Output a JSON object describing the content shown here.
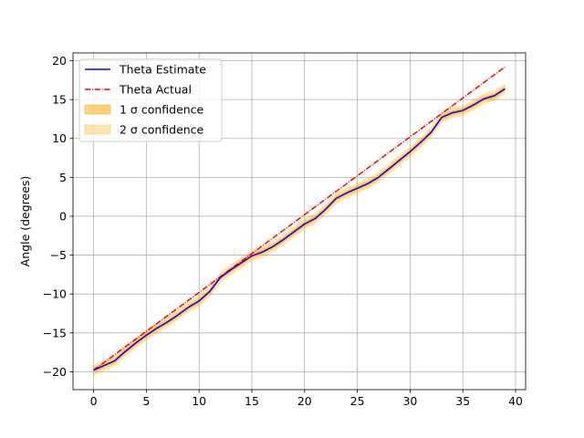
{
  "chart_data": {
    "type": "line",
    "title": "",
    "xlabel": "",
    "ylabel": "Angle (degrees)",
    "xlim": [
      -1.95,
      40.95
    ],
    "ylim": [
      -22.3,
      21.0
    ],
    "xticks": [
      0,
      5,
      10,
      15,
      20,
      25,
      30,
      35,
      40
    ],
    "yticks": [
      -20,
      -15,
      -10,
      -5,
      0,
      5,
      10,
      15,
      20
    ],
    "grid": true,
    "legend_position": "upper-left",
    "x": [
      0,
      1,
      2,
      3,
      4,
      5,
      6,
      7,
      8,
      9,
      10,
      11,
      12,
      13,
      14,
      15,
      16,
      17,
      18,
      19,
      20,
      21,
      22,
      23,
      24,
      25,
      26,
      27,
      28,
      29,
      30,
      31,
      32,
      33,
      34,
      35,
      36,
      37,
      38,
      39
    ],
    "series": [
      {
        "name": "Theta Estimate",
        "color": "#0000ff",
        "style": "solid",
        "values": [
          -19.8,
          -19.2,
          -18.6,
          -17.4,
          -16.3,
          -15.3,
          -14.4,
          -13.6,
          -12.7,
          -11.7,
          -10.9,
          -9.7,
          -7.9,
          -6.9,
          -6.0,
          -5.1,
          -4.6,
          -3.9,
          -3.0,
          -2.0,
          -1.0,
          -0.3,
          0.9,
          2.3,
          3.0,
          3.6,
          4.2,
          5.0,
          6.1,
          7.2,
          8.3,
          9.5,
          10.8,
          12.7,
          13.3,
          13.6,
          14.3,
          15.1,
          15.5,
          16.4
        ]
      },
      {
        "name": "Theta Actual",
        "color": "#ff0000",
        "style": "dashdot",
        "values": [
          -19.8,
          -18.8,
          -17.8,
          -16.8,
          -15.8,
          -14.8,
          -13.8,
          -12.8,
          -11.8,
          -10.8,
          -9.8,
          -8.8,
          -7.8,
          -6.8,
          -5.8,
          -4.8,
          -3.8,
          -2.8,
          -1.8,
          -0.8,
          0.2,
          1.2,
          2.2,
          3.2,
          4.2,
          5.2,
          6.2,
          7.2,
          8.2,
          9.2,
          10.2,
          11.2,
          12.2,
          13.2,
          14.2,
          15.2,
          16.2,
          17.2,
          18.2,
          19.2
        ]
      }
    ],
    "bands": [
      {
        "name": "1 σ confidence",
        "color": "#ffa500",
        "opacity": 0.5,
        "halfwidth": 0.35
      },
      {
        "name": "2 σ confidence",
        "color": "#ffa500",
        "opacity": 0.3,
        "halfwidth": 0.7
      }
    ],
    "legend": [
      {
        "label": "Theta Estimate",
        "kind": "line",
        "color": "#0000ff",
        "style": "solid"
      },
      {
        "label": "Theta Actual",
        "kind": "line",
        "color": "#ff0000",
        "style": "dashdot"
      },
      {
        "label": "1 σ confidence",
        "kind": "patch",
        "color": "#ffa500",
        "opacity": 0.5
      },
      {
        "label": "2 σ confidence",
        "kind": "patch",
        "color": "#ffa500",
        "opacity": 0.3
      }
    ]
  }
}
